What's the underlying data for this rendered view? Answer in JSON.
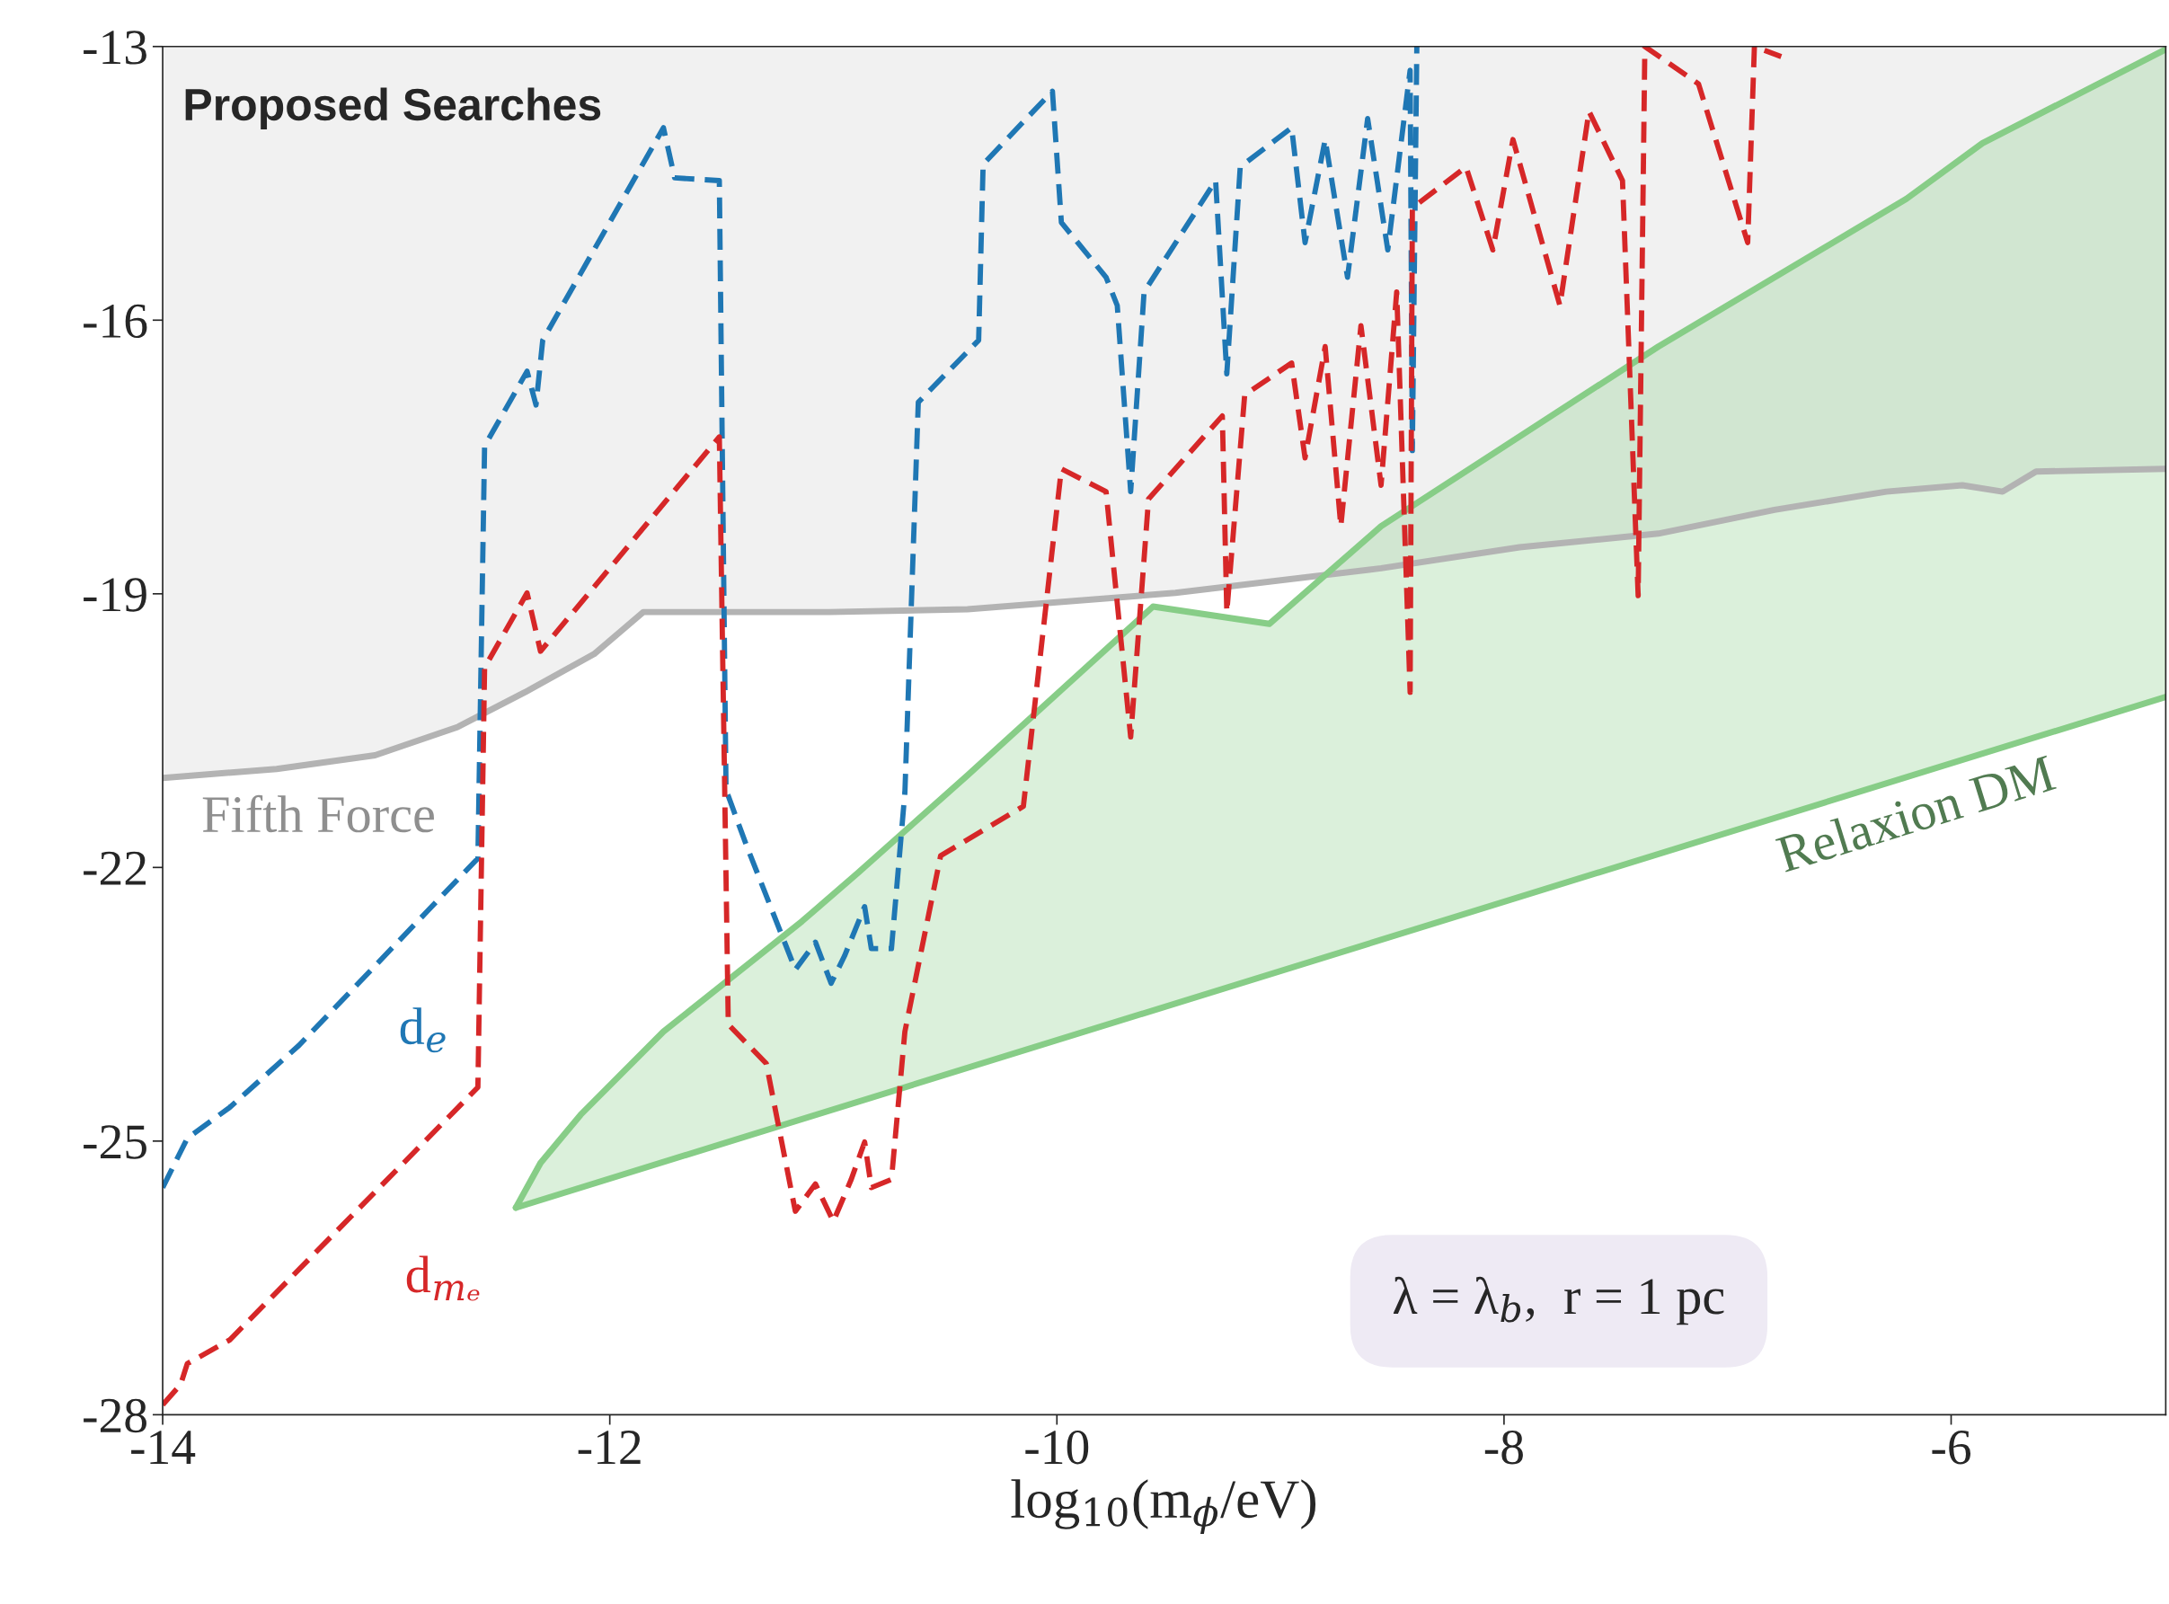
{
  "chart_data": {
    "type": "line",
    "xlabel": "log$_{10}$(m$_{ϕ}$/eV)",
    "xlim": [
      -14,
      -5.04
    ],
    "ylim": [
      -28,
      -13
    ],
    "xticks": [
      -14,
      -12,
      -10,
      -8,
      -6
    ],
    "yticks": [
      -28,
      -25,
      -22,
      -19,
      -16,
      -13
    ],
    "grid": false,
    "legend": false,
    "marker": "none",
    "annotations": [
      "Proposed Searches",
      "λ = λ$_{b}$,  r = 1 pc"
    ],
    "series": [
      {
        "name": "Fifth Force",
        "color": "#b3b3b3",
        "line_style": "solid",
        "x": [
          -14,
          -13.49,
          -13.05,
          -12.68,
          -12.38,
          -12.07,
          -11.85,
          -11.02,
          -10.4,
          -9.47,
          -8.55,
          -7.93,
          -7.31,
          -6.79,
          -6.29,
          -5.95,
          -5.77,
          -5.62,
          -5.04
        ],
        "values": [
          -21.02,
          -20.92,
          -20.77,
          -20.46,
          -20.08,
          -19.66,
          -19.2,
          -19.2,
          -19.17,
          -18.99,
          -18.72,
          -18.49,
          -18.34,
          -18.08,
          -17.88,
          -17.81,
          -17.88,
          -17.66,
          -17.63
        ],
        "lower": [
          -21.02,
          -20.92,
          -20.77,
          -20.46,
          -20.08,
          -19.66,
          -19.2,
          -19.2,
          -19.17,
          -18.99,
          -18.72,
          -18.49,
          -18.34,
          -18.08,
          -17.88,
          -17.81,
          -17.88,
          -17.66,
          -17.63
        ],
        "upper": [
          -13,
          -13,
          -13,
          -13,
          -13,
          -13,
          -13,
          -13,
          -13,
          -13,
          -13,
          -13,
          -13,
          -13,
          -13,
          -13,
          -13,
          -13,
          -13
        ]
      },
      {
        "color": "#87cd87",
        "line_style": "solid",
        "x": [
          -12.42,
          -12.31,
          -12.13,
          -11.76,
          -11.14,
          -10.89,
          -10.4,
          -9.57,
          -9.05,
          -8.55,
          -7.31,
          -6.2,
          -5.86,
          -5.04
        ],
        "values": [
          -25.73,
          -25.24,
          -24.71,
          -23.8,
          -22.59,
          -22.06,
          -20.99,
          -19.14,
          -19.33,
          -18.26,
          -16.29,
          -14.67,
          -14.06,
          -13.03
        ],
        "lower": [
          -25.73,
          -25.65,
          -25.51,
          -25.23,
          -24.76,
          -24.57,
          -24.2,
          -23.57,
          -23.17,
          -22.79,
          -21.85,
          -21.01,
          -20.75,
          -20.13
        ],
        "upper": [
          -25.73,
          -25.24,
          -24.71,
          -23.8,
          -22.59,
          -22.06,
          -20.99,
          -19.14,
          -19.33,
          -18.26,
          -16.29,
          -14.67,
          -14.06,
          -13.03
        ]
      },
      {
        "name": "Relaxion DM",
        "color": "#87cd87",
        "line_style": "solid",
        "x": [
          -12.42,
          -5.04
        ],
        "values": [
          -25.73,
          -20.13
        ]
      },
      {
        "name": "d$_{e}$",
        "color": "#1f77b4",
        "line_style": "dashed",
        "x": [
          -14,
          -13.89,
          -13.7,
          -13.39,
          -12.59,
          -12.56,
          -12.37,
          -12.33,
          -12.3,
          -11.76,
          -11.71,
          -11.51,
          -11.48,
          -11.39,
          -11.17,
          -11.08,
          -11.01,
          -10.95,
          -10.86,
          -10.83,
          -10.74,
          -10.68,
          -10.62,
          -10.35,
          -10.33,
          -10.02,
          -9.98,
          -9.78,
          -9.73,
          -9.67,
          -9.61,
          -9.29,
          -9.24,
          -9.18,
          -8.95,
          -8.89,
          -8.8,
          -8.7,
          -8.61,
          -8.52,
          -8.42,
          -8.41,
          -8.39
        ],
        "values": [
          -25.51,
          -24.97,
          -24.63,
          -23.95,
          -21.9,
          -17.38,
          -16.56,
          -16.93,
          -16.22,
          -13.89,
          -14.44,
          -14.47,
          -21.15,
          -21.75,
          -23.12,
          -22.82,
          -23.27,
          -22.97,
          -22.43,
          -22.89,
          -22.89,
          -21.18,
          -16.9,
          -16.22,
          -14.29,
          -13.49,
          -14.93,
          -15.53,
          -15.84,
          -17.88,
          -15.69,
          -14.47,
          -16.59,
          -14.32,
          -13.89,
          -15.15,
          -14.02,
          -15.53,
          -13.79,
          -15.23,
          -13.26,
          -17.43,
          -13.0
        ]
      },
      {
        "name": "d$_{mₑ}$",
        "color": "#d62728",
        "line_style": "dashed",
        "x": [
          -14,
          -13.92,
          -13.89,
          -13.7,
          -12.59,
          -12.56,
          -12.37,
          -12.31,
          -11.51,
          -11.47,
          -11.3,
          -11.17,
          -11.08,
          -11.0,
          -10.92,
          -10.86,
          -10.83,
          -10.74,
          -10.68,
          -10.52,
          -10.15,
          -9.98,
          -9.78,
          -9.67,
          -9.59,
          -9.26,
          -9.24,
          -9.16,
          -8.95,
          -8.89,
          -8.8,
          -8.73,
          -8.64,
          -8.55,
          -8.48,
          -8.42,
          -8.41,
          -8.17,
          -8.05,
          -7.96,
          -7.75,
          -7.62,
          -7.47,
          -7.4,
          -7.37,
          -7.13,
          -6.91,
          -6.88,
          -6.76
        ],
        "values": [
          -27.89,
          -27.67,
          -27.44,
          -27.18,
          -24.41,
          -19.81,
          -18.99,
          -19.63,
          -17.28,
          -23.72,
          -24.15,
          -25.77,
          -25.47,
          -25.88,
          -25.42,
          -25.01,
          -25.51,
          -25.42,
          -23.8,
          -21.87,
          -21.33,
          -17.63,
          -17.88,
          -20.57,
          -17.96,
          -17.05,
          -19.2,
          -16.82,
          -16.47,
          -17.51,
          -16.29,
          -18.26,
          -16.06,
          -17.81,
          -15.69,
          -20.08,
          -14.77,
          -14.32,
          -15.23,
          -14.02,
          -15.84,
          -13.71,
          -14.47,
          -19.02,
          -13.0,
          -13.41,
          -15.15,
          -13.0,
          -13.11
        ]
      }
    ]
  }
}
